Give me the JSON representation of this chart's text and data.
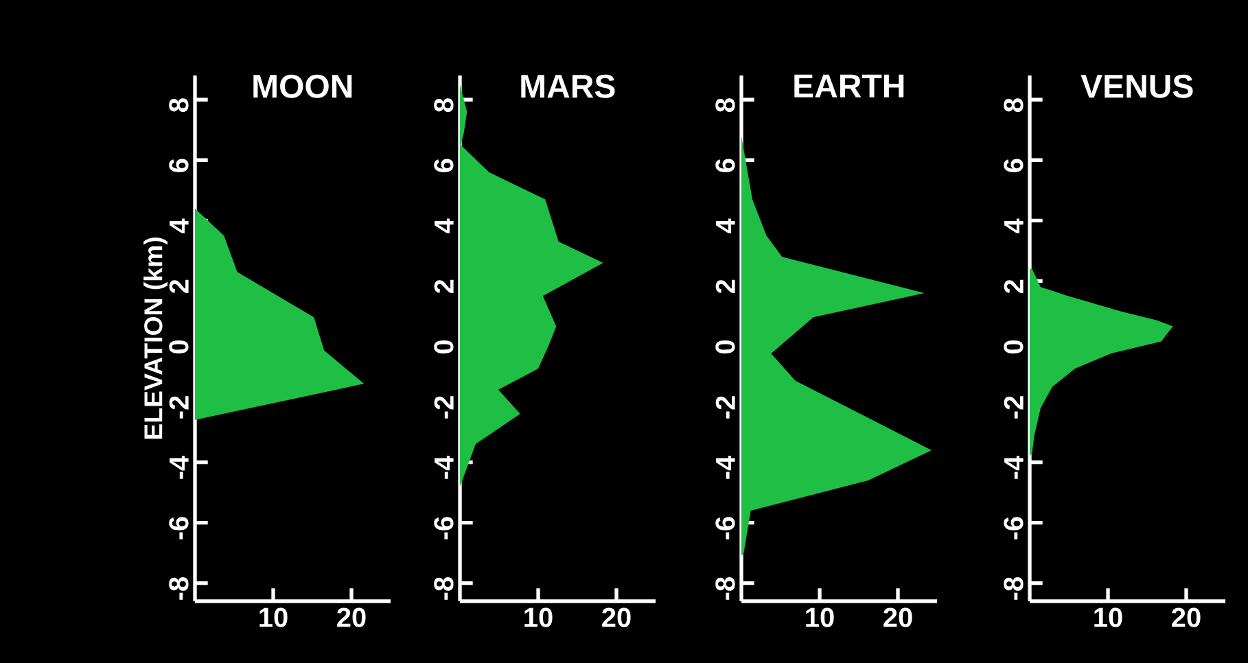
{
  "chart_data": [
    {
      "type": "area",
      "orientation": "horizontal",
      "title": "MOON",
      "ylabel": "ELEVATION (km)",
      "color": "#1fbf45",
      "x": [
        4.4,
        3.5,
        2.3,
        0.8,
        -0.3,
        -1.4,
        -2.6
      ],
      "values": [
        0,
        3.7,
        5.4,
        15.2,
        16.5,
        21.6,
        0
      ],
      "xlim": [
        0,
        25
      ],
      "xticks": [
        10,
        20
      ],
      "ylim": [
        -8.6,
        8.8
      ],
      "yticks": [
        -8,
        -6,
        -4,
        -2,
        0,
        2,
        4,
        6,
        8
      ]
    },
    {
      "type": "area",
      "orientation": "horizontal",
      "title": "MARS",
      "color": "#1fbf45",
      "x": [
        8.5,
        7.6,
        6.9,
        6.5,
        5.6,
        4.7,
        3.3,
        2.6,
        1.5,
        0.5,
        -0.1,
        -0.9,
        -1.6,
        -2.4,
        -3.4,
        -4.6,
        -4.8
      ],
      "values": [
        0,
        0.9,
        0.5,
        0.1,
        3.7,
        10.9,
        12.6,
        18.3,
        10.6,
        12.3,
        11.4,
        10,
        4.9,
        7.7,
        2,
        0.3,
        0
      ],
      "xlim": [
        0,
        25
      ],
      "xticks": [
        10,
        20
      ],
      "ylim": [
        -8.6,
        8.8
      ],
      "yticks": [
        -8,
        -6,
        -4,
        -2,
        0,
        2,
        4,
        6,
        8
      ]
    },
    {
      "type": "area",
      "orientation": "horizontal",
      "title": "EARTH",
      "color": "#1fbf45",
      "x": [
        6.8,
        4.7,
        3.5,
        2.8,
        1.6,
        0.8,
        -0.4,
        -1.3,
        -3.6,
        -4.6,
        -5.6,
        -7,
        -7.1
      ],
      "values": [
        0,
        1.4,
        3.2,
        5.2,
        23.4,
        9.2,
        3.8,
        6.9,
        24.3,
        16.2,
        1.2,
        0.3,
        0
      ],
      "xlim": [
        0,
        25
      ],
      "xticks": [
        10,
        20
      ],
      "ylim": [
        -8.6,
        8.8
      ],
      "yticks": [
        -8,
        -6,
        -4,
        -2,
        0,
        2,
        4,
        6,
        8
      ]
    },
    {
      "type": "area",
      "orientation": "horizontal",
      "title": "VENUS",
      "color": "#1fbf45",
      "x": [
        2.4,
        1.8,
        1.5,
        1.0,
        0.7,
        0.5,
        0.0,
        -0.4,
        -0.9,
        -1.5,
        -2.2,
        -3.1,
        -3.7,
        -3.8
      ],
      "values": [
        0.3,
        1.4,
        4.9,
        11.6,
        16.2,
        18.3,
        16.8,
        10.4,
        5.8,
        2.9,
        1.4,
        0.6,
        0.3,
        0
      ],
      "xlim": [
        0,
        25
      ],
      "xticks": [
        10,
        20
      ],
      "ylim": [
        -8.6,
        8.8
      ],
      "yticks": [
        -8,
        -6,
        -4,
        -2,
        0,
        2,
        4,
        6,
        8
      ]
    }
  ]
}
